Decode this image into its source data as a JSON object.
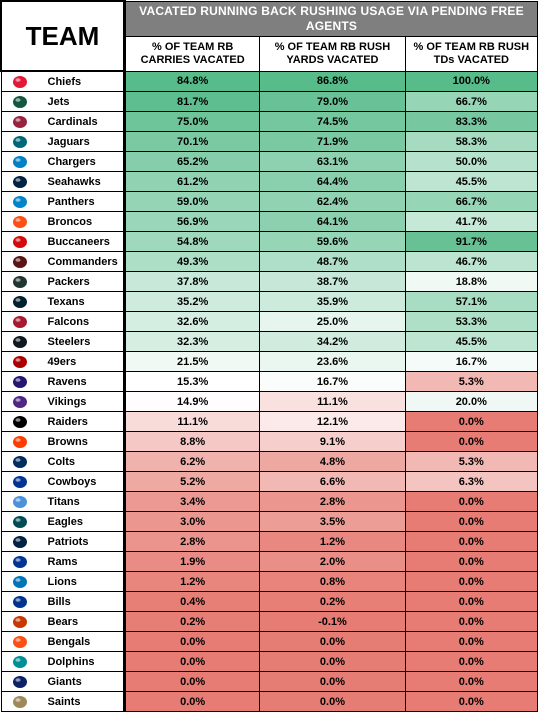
{
  "header": {
    "team_label": "TEAM",
    "title": "VACATED RUNNING BACK RUSHING USAGE VIA PENDING FREE AGENTS",
    "columns": [
      "% OF TEAM RB CARRIES VACATED",
      "% OF TEAM RB RUSH YARDS VACATED",
      "% OF TEAM RB RUSH TDs VACATED"
    ]
  },
  "chart_data": {
    "type": "table",
    "title": "VACATED RUNNING BACK RUSHING USAGE VIA PENDING FREE AGENTS",
    "columns": [
      "TEAM",
      "% OF TEAM RB CARRIES VACATED",
      "% OF TEAM RB RUSH YARDS VACATED",
      "% OF TEAM RB RUSH TDs VACATED"
    ],
    "color_scale": {
      "high": "#57bb8a",
      "mid": "#ffffff",
      "low": "#e67c73"
    },
    "rows": [
      {
        "team": "Chiefs",
        "logo": "chiefs-logo",
        "logo_color": "#e31837",
        "carries": "84.8%",
        "yards": "86.8%",
        "tds": "100.0%"
      },
      {
        "team": "Jets",
        "logo": "jets-logo",
        "logo_color": "#125740",
        "carries": "81.7%",
        "yards": "79.0%",
        "tds": "66.7%"
      },
      {
        "team": "Cardinals",
        "logo": "cardinals-logo",
        "logo_color": "#97233f",
        "carries": "75.0%",
        "yards": "74.5%",
        "tds": "83.3%"
      },
      {
        "team": "Jaguars",
        "logo": "jaguars-logo",
        "logo_color": "#006778",
        "carries": "70.1%",
        "yards": "71.9%",
        "tds": "58.3%"
      },
      {
        "team": "Chargers",
        "logo": "chargers-logo",
        "logo_color": "#0080c6",
        "carries": "65.2%",
        "yards": "63.1%",
        "tds": "50.0%"
      },
      {
        "team": "Seahawks",
        "logo": "seahawks-logo",
        "logo_color": "#002244",
        "carries": "61.2%",
        "yards": "64.4%",
        "tds": "45.5%"
      },
      {
        "team": "Panthers",
        "logo": "panthers-logo",
        "logo_color": "#0085ca",
        "carries": "59.0%",
        "yards": "62.4%",
        "tds": "66.7%"
      },
      {
        "team": "Broncos",
        "logo": "broncos-logo",
        "logo_color": "#fb4f14",
        "carries": "56.9%",
        "yards": "64.1%",
        "tds": "41.7%"
      },
      {
        "team": "Buccaneers",
        "logo": "buccaneers-logo",
        "logo_color": "#d50a0a",
        "carries": "54.8%",
        "yards": "59.6%",
        "tds": "91.7%"
      },
      {
        "team": "Commanders",
        "logo": "commanders-logo",
        "logo_color": "#5a1414",
        "carries": "49.3%",
        "yards": "48.7%",
        "tds": "46.7%"
      },
      {
        "team": "Packers",
        "logo": "packers-logo",
        "logo_color": "#203731",
        "carries": "37.8%",
        "yards": "38.7%",
        "tds": "18.8%"
      },
      {
        "team": "Texans",
        "logo": "texans-logo",
        "logo_color": "#03202f",
        "carries": "35.2%",
        "yards": "35.9%",
        "tds": "57.1%"
      },
      {
        "team": "Falcons",
        "logo": "falcons-logo",
        "logo_color": "#a71930",
        "carries": "32.6%",
        "yards": "25.0%",
        "tds": "53.3%"
      },
      {
        "team": "Steelers",
        "logo": "steelers-logo",
        "logo_color": "#101820",
        "carries": "32.3%",
        "yards": "34.2%",
        "tds": "45.5%"
      },
      {
        "team": "49ers",
        "logo": "49ers-logo",
        "logo_color": "#aa0000",
        "carries": "21.5%",
        "yards": "23.6%",
        "tds": "16.7%"
      },
      {
        "team": "Ravens",
        "logo": "ravens-logo",
        "logo_color": "#241773",
        "carries": "15.3%",
        "yards": "16.7%",
        "tds": "5.3%"
      },
      {
        "team": "Vikings",
        "logo": "vikings-logo",
        "logo_color": "#4f2683",
        "carries": "14.9%",
        "yards": "11.1%",
        "tds": "20.0%"
      },
      {
        "team": "Raiders",
        "logo": "raiders-logo",
        "logo_color": "#000000",
        "carries": "11.1%",
        "yards": "12.1%",
        "tds": "0.0%"
      },
      {
        "team": "Browns",
        "logo": "browns-logo",
        "logo_color": "#ff3c00",
        "carries": "8.8%",
        "yards": "9.1%",
        "tds": "0.0%"
      },
      {
        "team": "Colts",
        "logo": "colts-logo",
        "logo_color": "#002c5f",
        "carries": "6.2%",
        "yards": "4.8%",
        "tds": "5.3%"
      },
      {
        "team": "Cowboys",
        "logo": "cowboys-logo",
        "logo_color": "#003594",
        "carries": "5.2%",
        "yards": "6.6%",
        "tds": "6.3%"
      },
      {
        "team": "Titans",
        "logo": "titans-logo",
        "logo_color": "#4b92db",
        "carries": "3.4%",
        "yards": "2.8%",
        "tds": "0.0%"
      },
      {
        "team": "Eagles",
        "logo": "eagles-logo",
        "logo_color": "#004c54",
        "carries": "3.0%",
        "yards": "3.5%",
        "tds": "0.0%"
      },
      {
        "team": "Patriots",
        "logo": "patriots-logo",
        "logo_color": "#002244",
        "carries": "2.8%",
        "yards": "1.2%",
        "tds": "0.0%"
      },
      {
        "team": "Rams",
        "logo": "rams-logo",
        "logo_color": "#003594",
        "carries": "1.9%",
        "yards": "2.0%",
        "tds": "0.0%"
      },
      {
        "team": "Lions",
        "logo": "lions-logo",
        "logo_color": "#0076b6",
        "carries": "1.2%",
        "yards": "0.8%",
        "tds": "0.0%"
      },
      {
        "team": "Bills",
        "logo": "bills-logo",
        "logo_color": "#00338d",
        "carries": "0.4%",
        "yards": "0.2%",
        "tds": "0.0%"
      },
      {
        "team": "Bears",
        "logo": "bears-logo",
        "logo_color": "#c83803",
        "carries": "0.2%",
        "yards": "-0.1%",
        "tds": "0.0%"
      },
      {
        "team": "Bengals",
        "logo": "bengals-logo",
        "logo_color": "#fb4f14",
        "carries": "0.0%",
        "yards": "0.0%",
        "tds": "0.0%"
      },
      {
        "team": "Dolphins",
        "logo": "dolphins-logo",
        "logo_color": "#008e97",
        "carries": "0.0%",
        "yards": "0.0%",
        "tds": "0.0%"
      },
      {
        "team": "Giants",
        "logo": "giants-logo",
        "logo_color": "#0b2265",
        "carries": "0.0%",
        "yards": "0.0%",
        "tds": "0.0%"
      },
      {
        "team": "Saints",
        "logo": "saints-logo",
        "logo_color": "#9f8958",
        "carries": "0.0%",
        "yards": "0.0%",
        "tds": "0.0%"
      }
    ]
  }
}
